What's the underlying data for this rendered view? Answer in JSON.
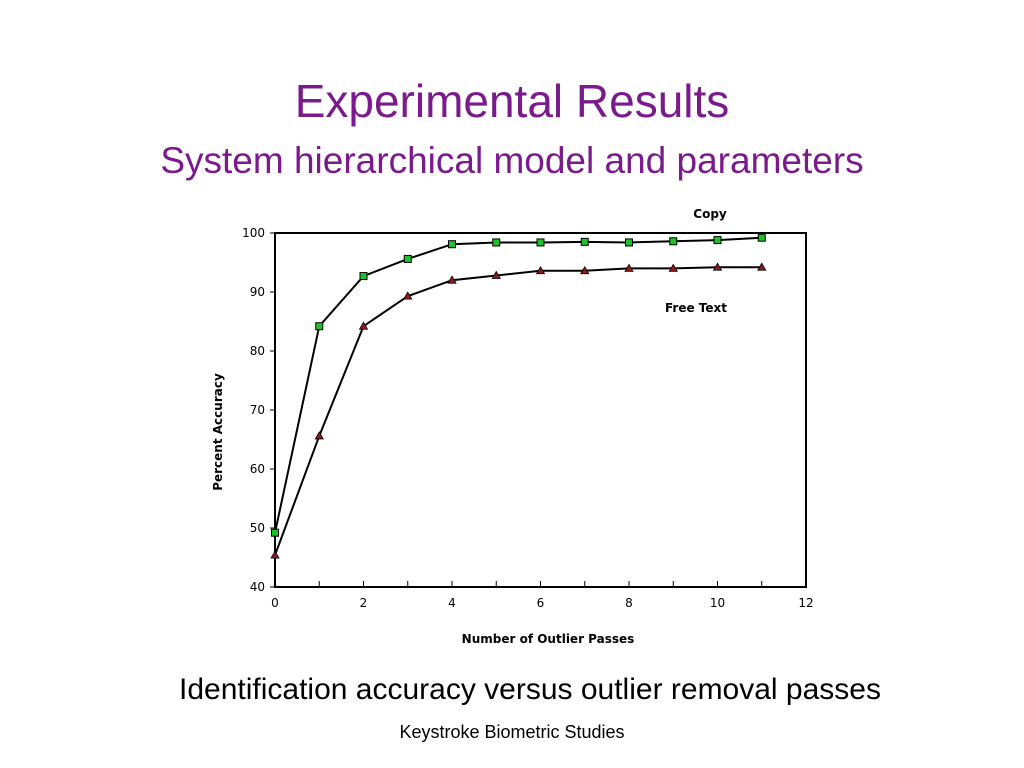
{
  "slide": {
    "title": "Experimental Results",
    "subtitle": "System hierarchical model and parameters",
    "caption": "Identification accuracy versus outlier removal passes",
    "footer": "Keystroke Biometric Studies"
  },
  "colors": {
    "title": "#7a1a8c",
    "copy_marker": "#22c02a",
    "free_text_marker": "#8b1a1a",
    "line": "#000000"
  },
  "chart_data": {
    "type": "line",
    "title": "",
    "xlabel": "Number of Outlier Passes",
    "ylabel": "Percent Accuracy",
    "xlim": [
      0,
      12
    ],
    "ylim": [
      40,
      100
    ],
    "x_ticks": [
      0,
      2,
      4,
      6,
      8,
      10,
      12
    ],
    "y_ticks": [
      40,
      50,
      60,
      70,
      80,
      90,
      100
    ],
    "grid": false,
    "x": [
      0,
      1,
      2,
      3,
      4,
      5,
      6,
      7,
      8,
      9,
      10,
      11
    ],
    "series": [
      {
        "name": "Copy",
        "marker": "square",
        "values": [
          49.2,
          84.2,
          92.7,
          95.6,
          98.1,
          98.4,
          98.4,
          98.5,
          98.4,
          98.6,
          98.8,
          99.2
        ]
      },
      {
        "name": "Free Text",
        "marker": "triangle",
        "values": [
          45.4,
          65.6,
          84.2,
          89.3,
          92.0,
          92.8,
          93.6,
          93.6,
          94.0,
          94.0,
          94.2,
          94.2
        ]
      }
    ]
  }
}
